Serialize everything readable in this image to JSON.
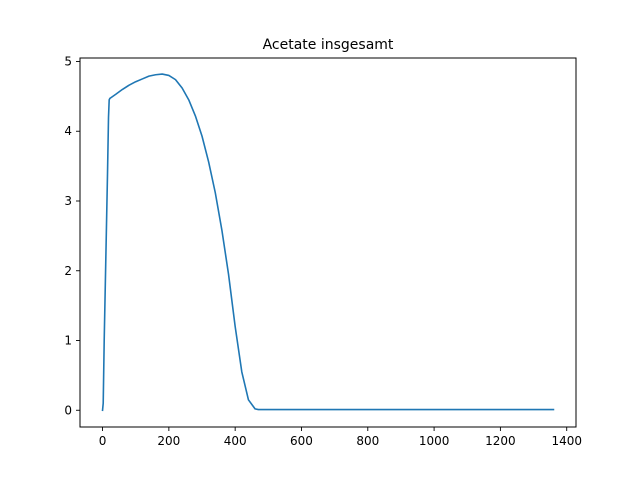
{
  "chart_data": {
    "type": "line",
    "title": "Acetate insgesamt",
    "xlabel": "",
    "ylabel": "",
    "xlim": [
      -68,
      1428
    ],
    "ylim": [
      -0.24,
      5.05
    ],
    "grid": false,
    "legend": "none",
    "x_ticks": [
      0,
      200,
      400,
      600,
      800,
      1000,
      1200,
      1400
    ],
    "y_ticks": [
      0,
      1,
      2,
      3,
      4,
      5
    ],
    "x_tick_labels": [
      "0",
      "200",
      "400",
      "600",
      "800",
      "1000",
      "1200",
      "1400"
    ],
    "y_tick_labels": [
      "0",
      "1",
      "2",
      "3",
      "4",
      "5"
    ],
    "series": [
      {
        "color": "#1f77b4",
        "x": [
          0,
          2,
          5,
          10,
          15,
          18,
          20,
          22,
          25,
          40,
          60,
          80,
          100,
          120,
          140,
          160,
          180,
          200,
          220,
          240,
          260,
          280,
          300,
          320,
          340,
          360,
          380,
          400,
          420,
          440,
          460,
          470,
          480,
          500,
          600,
          800,
          1000,
          1200,
          1360
        ],
        "y": [
          0.0,
          0.1,
          1.0,
          2.2,
          3.4,
          4.2,
          4.45,
          4.47,
          4.48,
          4.53,
          4.6,
          4.66,
          4.71,
          4.75,
          4.79,
          4.81,
          4.82,
          4.8,
          4.74,
          4.62,
          4.45,
          4.22,
          3.93,
          3.56,
          3.12,
          2.58,
          1.95,
          1.2,
          0.55,
          0.15,
          0.02,
          0.01,
          0.01,
          0.01,
          0.01,
          0.01,
          0.01,
          0.01,
          0.01
        ]
      }
    ]
  }
}
